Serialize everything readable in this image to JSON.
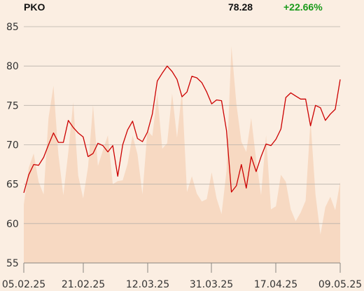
{
  "header": {
    "ticker": "PKO",
    "price": "78.28",
    "change": "+22.66%",
    "change_color": "#1a9a1a"
  },
  "colors": {
    "line": "#cc0000",
    "volume_area": "#f7d9c2",
    "grid": "#b9b2aa",
    "background": "#fbeee2"
  },
  "chart_data": {
    "type": "line",
    "title": "PKO",
    "ylim": [
      55,
      85
    ],
    "yticks": [
      55,
      60,
      65,
      70,
      75,
      80,
      85
    ],
    "xticks": [
      "05.02.25",
      "21.02.25",
      "12.03.25",
      "31.03.25",
      "17.04.25",
      "09.05.25"
    ],
    "grid": true,
    "series": [
      {
        "name": "PKO",
        "kind": "line",
        "values": [
          63.9,
          66.2,
          67.5,
          67.4,
          68.4,
          70.0,
          71.5,
          70.3,
          70.3,
          73.1,
          72.2,
          71.5,
          71.0,
          68.5,
          68.9,
          70.2,
          69.9,
          69.1,
          69.9,
          66.0,
          70.0,
          71.9,
          73.0,
          70.8,
          70.4,
          71.6,
          73.9,
          78.1,
          79.1,
          80.0,
          79.3,
          78.3,
          76.1,
          76.7,
          78.7,
          78.5,
          77.9,
          76.7,
          75.2,
          75.7,
          75.6,
          71.8,
          64.0,
          64.8,
          67.5,
          64.5,
          68.5,
          66.6,
          68.5,
          70.1,
          69.9,
          70.7,
          72.0,
          76.0,
          76.6,
          76.2,
          75.8,
          75.8,
          72.4,
          75.0,
          74.7,
          73.1,
          73.9,
          74.5,
          78.3
        ]
      },
      {
        "name": "volume",
        "kind": "area",
        "values": [
          62.4,
          67.1,
          68.9,
          65.3,
          63.7,
          73.4,
          77.5,
          68.8,
          63.6,
          69.1,
          75.4,
          66.1,
          63.2,
          67.2,
          75.0,
          67.3,
          69.3,
          71.2,
          65.0,
          65.4,
          65.5,
          67.6,
          71.2,
          68.8,
          63.7,
          71.8,
          71.1,
          76.4,
          69.5,
          70.2,
          76.5,
          70.9,
          76.8,
          64.0,
          66.0,
          63.8,
          62.8,
          63.1,
          66.5,
          63.2,
          61.2,
          66.7,
          82.5,
          75.2,
          70.4,
          69.1,
          73.4,
          68.1,
          63.6,
          71.2,
          61.8,
          62.2,
          66.2,
          65.3,
          61.8,
          60.3,
          61.4,
          62.9,
          73.1,
          63.7,
          58.6,
          62.1,
          63.4,
          61.7,
          65.3
        ]
      }
    ]
  }
}
